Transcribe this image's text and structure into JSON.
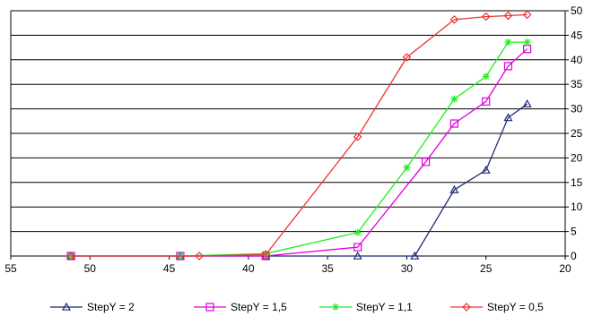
{
  "chart_data": {
    "type": "line",
    "title": "",
    "xlabel": "",
    "ylabel": "",
    "xlim": [
      55,
      20
    ],
    "ylim": [
      0,
      50
    ],
    "x_reversed": true,
    "y_axis_side": "right",
    "grid": "horizontal",
    "legend_position": "bottom",
    "xticks": [
      55,
      50,
      45,
      40,
      35,
      30,
      25,
      20
    ],
    "yticks": [
      0,
      5,
      10,
      15,
      20,
      25,
      30,
      35,
      40,
      45,
      50
    ],
    "series": [
      {
        "name": "StepY = 2",
        "color": "#1f2a78",
        "marker": "triangle",
        "points": [
          [
            51.2,
            0
          ],
          [
            44.3,
            0
          ],
          [
            38.9,
            0
          ],
          [
            33.1,
            0
          ],
          [
            29.5,
            0
          ],
          [
            27.0,
            13.5
          ],
          [
            25.0,
            17.5
          ],
          [
            23.6,
            28.2
          ],
          [
            22.4,
            31.0
          ]
        ]
      },
      {
        "name": "StepY = 1,5",
        "color": "#e000e0",
        "marker": "square",
        "points": [
          [
            51.2,
            0
          ],
          [
            44.3,
            0
          ],
          [
            38.9,
            0
          ],
          [
            33.1,
            1.8
          ],
          [
            28.8,
            19.2
          ],
          [
            27.0,
            27.0
          ],
          [
            25.0,
            31.5
          ],
          [
            23.6,
            38.7
          ],
          [
            22.4,
            42.2
          ]
        ]
      },
      {
        "name": "StepY = 1,1",
        "color": "#22ee22",
        "marker": "star",
        "points": [
          [
            51.2,
            0
          ],
          [
            44.3,
            0
          ],
          [
            38.9,
            0.5
          ],
          [
            33.1,
            4.8
          ],
          [
            30.0,
            18.0
          ],
          [
            27.0,
            32.0
          ],
          [
            25.0,
            36.6
          ],
          [
            23.6,
            43.6
          ],
          [
            22.4,
            43.6
          ]
        ]
      },
      {
        "name": "StepY = 0,5",
        "color": "#ee3333",
        "marker": "diamond",
        "points": [
          [
            51.2,
            0
          ],
          [
            43.1,
            0
          ],
          [
            38.9,
            0.3
          ],
          [
            33.1,
            24.3
          ],
          [
            30.0,
            40.5
          ],
          [
            27.0,
            48.2
          ],
          [
            25.0,
            48.8
          ],
          [
            23.6,
            49.0
          ],
          [
            22.4,
            49.2
          ]
        ]
      }
    ]
  }
}
